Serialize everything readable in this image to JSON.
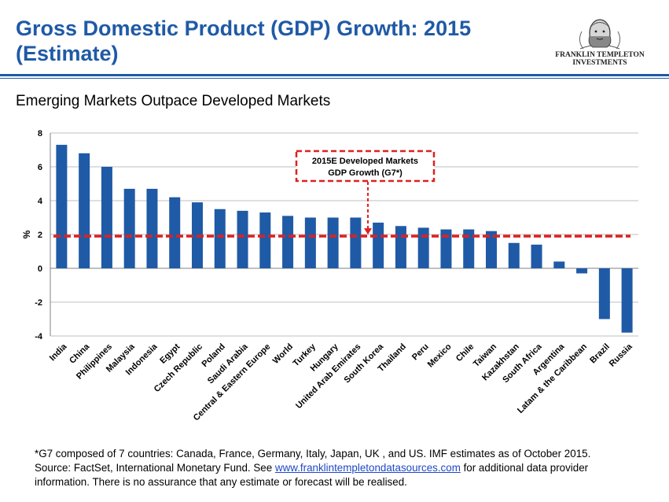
{
  "header": {
    "title_line1": "Gross Domestic Product (GDP) Growth: 2015",
    "title_line2": "(Estimate)",
    "logo_line1": "FRANKLIN TEMPLETON",
    "logo_line2": "INVESTMENTS"
  },
  "subtitle": "Emerging Markets Outpace Developed Markets",
  "colors": {
    "accent": "#1f5aa6",
    "bar": "#1f5aa6",
    "reference_line": "#e02020"
  },
  "chart_data": {
    "type": "bar",
    "ylabel": "%",
    "ylim": [
      -4,
      8
    ],
    "yticks": [
      8,
      6,
      4,
      2,
      0,
      -2,
      -4
    ],
    "grid": true,
    "categories": [
      "India",
      "China",
      "Philippines",
      "Malaysia",
      "Indonesia",
      "Egypt",
      "Czech Republic",
      "Poland",
      "Saudi Arabia",
      "Central & Eastern Europe",
      "World",
      "Turkey",
      "Hungary",
      "United Arab Emirates",
      "South Korea",
      "Thailand",
      "Peru",
      "Mexico",
      "Chile",
      "Taiwan",
      "Kazakhstan",
      "South Africa",
      "Argentina",
      "Latam & the Caribbean",
      "Brazil",
      "Russia"
    ],
    "values": [
      7.3,
      6.8,
      6.0,
      4.7,
      4.7,
      4.2,
      3.9,
      3.5,
      3.4,
      3.3,
      3.1,
      3.0,
      3.0,
      3.0,
      2.7,
      2.5,
      2.4,
      2.3,
      2.3,
      2.2,
      1.5,
      1.4,
      0.4,
      -0.3,
      -3.0,
      -3.8
    ],
    "reference_line": {
      "value": 1.9,
      "label_line1": "2015E Developed Markets",
      "label_line2": "GDP Growth (G7*)"
    }
  },
  "footnote": {
    "line1": "*G7 composed of 7 countries: Canada, France, Germany, Italy, Japan, UK , and US. IMF estimates as of October 2015.",
    "line2_prefix": "Source: FactSet, International Monetary Fund. See ",
    "link_text": "www.franklintempletondatasources.com",
    "line2_suffix": " for additional data provider",
    "line3": "information. There is no assurance that any estimate or forecast will be realised."
  }
}
